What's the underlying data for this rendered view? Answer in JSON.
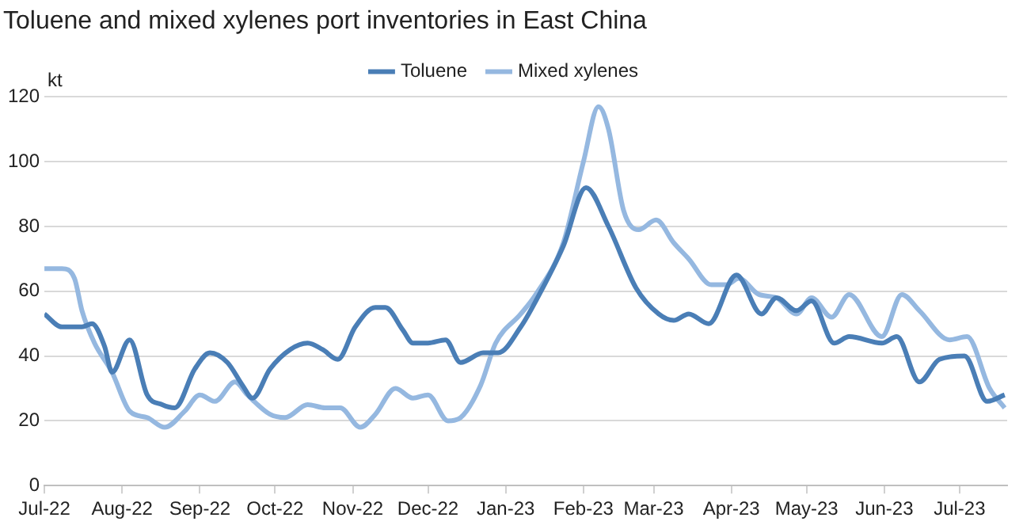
{
  "chart_data": {
    "type": "line",
    "title": "Toluene and mixed xylenes port inventories in East China",
    "ylabel": "kt",
    "xlim": [
      "2022-07-01",
      "2023-07-20"
    ],
    "xticks": [
      {
        "value": "2022-07-01",
        "label": "Jul-22"
      },
      {
        "value": "2022-08-01",
        "label": "Aug-22"
      },
      {
        "value": "2022-09-01",
        "label": "Sep-22"
      },
      {
        "value": "2022-10-01",
        "label": "Oct-22"
      },
      {
        "value": "2022-11-01",
        "label": "Nov-22"
      },
      {
        "value": "2022-12-01",
        "label": "Dec-22"
      },
      {
        "value": "2023-01-01",
        "label": "Jan-23"
      },
      {
        "value": "2023-02-01",
        "label": "Feb-23"
      },
      {
        "value": "2023-03-01",
        "label": "Mar-23"
      },
      {
        "value": "2023-04-01",
        "label": "Apr-23"
      },
      {
        "value": "2023-05-01",
        "label": "May-23"
      },
      {
        "value": "2023-06-01",
        "label": "Jun-23"
      },
      {
        "value": "2023-07-01",
        "label": "Jul-23"
      }
    ],
    "ylim": [
      0,
      120
    ],
    "yticks": [
      0,
      20,
      40,
      60,
      80,
      100,
      120
    ],
    "grid": "y",
    "legend": "top",
    "marker": "none",
    "line_style": "solid",
    "series": [
      {
        "name": "Toluene",
        "color": "#4a7eb6",
        "x": [
          "2022-07-01",
          "2022-07-08",
          "2022-07-16",
          "2022-07-20",
          "2022-07-25",
          "2022-07-28",
          "2022-08-04",
          "2022-08-11",
          "2022-08-17",
          "2022-08-22",
          "2022-08-30",
          "2022-09-05",
          "2022-09-12",
          "2022-09-18",
          "2022-09-22",
          "2022-09-29",
          "2022-10-07",
          "2022-10-14",
          "2022-10-20",
          "2022-10-26",
          "2022-11-02",
          "2022-11-10",
          "2022-11-14",
          "2022-11-21",
          "2022-11-25",
          "2022-12-01",
          "2022-12-08",
          "2022-12-14",
          "2022-12-23",
          "2022-12-29",
          "2023-01-07",
          "2023-01-13",
          "2023-01-24",
          "2023-02-02",
          "2023-02-11",
          "2023-02-22",
          "2023-03-03",
          "2023-03-09",
          "2023-03-15",
          "2023-03-23",
          "2023-04-03",
          "2023-04-13",
          "2023-04-19",
          "2023-04-27",
          "2023-05-03",
          "2023-05-12",
          "2023-05-18",
          "2023-05-31",
          "2023-06-06",
          "2023-06-15",
          "2023-06-23",
          "2023-07-03",
          "2023-07-12",
          "2023-07-19"
        ],
        "values": [
          53,
          49,
          49,
          50,
          43,
          35,
          45,
          28,
          25,
          24,
          36,
          41,
          38,
          31,
          27,
          36,
          42,
          44,
          42,
          39,
          49,
          55,
          55,
          48,
          44,
          44,
          45,
          38,
          41,
          41,
          49,
          57,
          74,
          92,
          80,
          61,
          53,
          51,
          53,
          50,
          65,
          53,
          58,
          54,
          57,
          44,
          46,
          44,
          46,
          32,
          39,
          40,
          26,
          28
        ]
      },
      {
        "name": "Mixed xylenes",
        "color": "#95b8e0",
        "x": [
          "2022-07-01",
          "2022-07-08",
          "2022-07-13",
          "2022-07-16",
          "2022-07-21",
          "2022-07-28",
          "2022-08-04",
          "2022-08-11",
          "2022-08-18",
          "2022-08-26",
          "2022-09-01",
          "2022-09-07",
          "2022-09-15",
          "2022-09-20",
          "2022-09-29",
          "2022-10-05",
          "2022-10-14",
          "2022-10-21",
          "2022-10-27",
          "2022-11-04",
          "2022-11-10",
          "2022-11-18",
          "2022-11-25",
          "2022-12-01",
          "2022-12-09",
          "2022-12-14",
          "2022-12-22",
          "2022-12-28",
          "2023-01-07",
          "2023-01-13",
          "2023-01-24",
          "2023-02-01",
          "2023-02-07",
          "2023-02-11",
          "2023-02-17",
          "2023-02-23",
          "2023-03-02",
          "2023-03-09",
          "2023-03-15",
          "2023-03-24",
          "2023-03-30",
          "2023-04-04",
          "2023-04-12",
          "2023-04-19",
          "2023-04-27",
          "2023-05-03",
          "2023-05-11",
          "2023-05-18",
          "2023-05-31",
          "2023-06-08",
          "2023-06-15",
          "2023-06-27",
          "2023-07-04",
          "2023-07-13",
          "2023-07-19"
        ],
        "values": [
          67,
          67,
          64,
          54,
          44,
          35,
          23,
          21,
          18,
          23,
          28,
          26,
          32,
          28,
          22,
          21,
          25,
          24,
          24,
          18,
          22,
          30,
          27,
          28,
          20,
          21,
          31,
          44,
          53,
          59,
          75,
          100,
          117,
          110,
          85,
          79,
          82,
          75,
          70,
          62,
          62,
          64,
          59,
          58,
          53,
          58,
          52,
          59,
          46,
          59,
          54,
          45,
          46,
          30,
          24
        ]
      }
    ]
  }
}
